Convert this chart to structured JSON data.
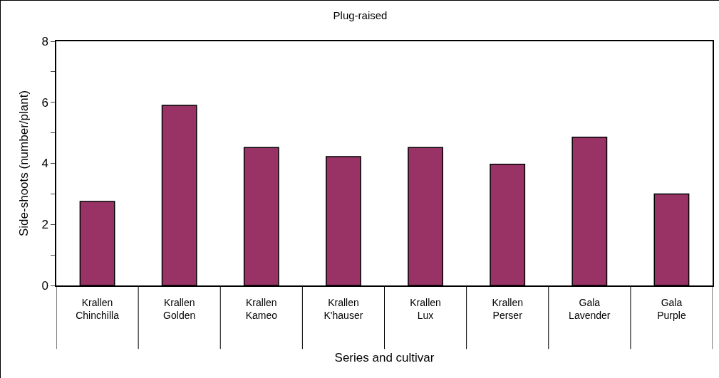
{
  "chart_data": {
    "type": "bar",
    "title": "Plug-raised",
    "xlabel": "Series and cultivar",
    "ylabel": "Side-shoots (number/plant)",
    "categories": [
      "Krallen\nChinchilla",
      "Krallen\nGolden",
      "Krallen\nKameo",
      "Krallen\nK'hauser",
      "Krallen\nLux",
      "Krallen\nPerser",
      "Gala\nLavender",
      "Gala\nPurple"
    ],
    "values": [
      2.75,
      5.9,
      4.52,
      4.22,
      4.52,
      3.97,
      4.86,
      3.0
    ],
    "color": "#993366",
    "ylim": [
      0,
      8
    ],
    "yticks": [
      0,
      {
        "value": 1,
        "label": null
      },
      2,
      {
        "value": 3,
        "label": null
      },
      4,
      {
        "value": 5,
        "label": null
      },
      6,
      {
        "value": 7,
        "label": null
      },
      8
    ],
    "grid": false
  }
}
